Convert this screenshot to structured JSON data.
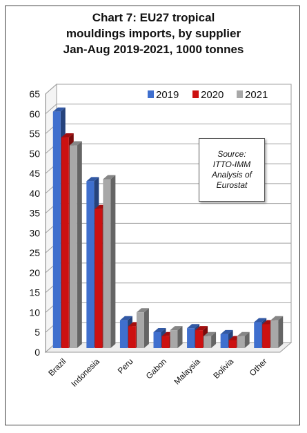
{
  "title_lines": [
    "Chart 7: EU27 tropical",
    "mouldings imports, by supplier",
    "Jan-Aug 2019-2021, 1000 tonnes"
  ],
  "source_lines": [
    "Source:",
    "ITTO-IMM",
    "Analysis of",
    "Eurostat"
  ],
  "chart_data": {
    "type": "bar",
    "title": "Chart 7: EU27 tropical mouldings imports, by supplier Jan-Aug 2019-2021, 1000 tonnes",
    "categories": [
      "Brazil",
      "Indonesia",
      "Peru",
      "Gabon",
      "Malaysia",
      "Bolivia",
      "Other"
    ],
    "series": [
      {
        "name": "2019",
        "values": [
          59.5,
          42,
          7,
          4,
          5,
          3.5,
          6.5
        ]
      },
      {
        "name": "2020",
        "values": [
          53,
          35,
          5.5,
          3,
          4.5,
          2,
          6
        ]
      },
      {
        "name": "2021",
        "values": [
          51,
          42.5,
          9,
          4.5,
          3,
          3,
          7
        ]
      }
    ],
    "ylim": [
      0,
      65
    ],
    "yticks": [
      0,
      5,
      10,
      15,
      20,
      25,
      30,
      35,
      40,
      45,
      50,
      55,
      60,
      65
    ],
    "grid": true,
    "legend": "top-right",
    "colors": {
      "2019": "#3f6fce",
      "2020": "#cc1111",
      "2021": "#a8a8a8"
    }
  }
}
